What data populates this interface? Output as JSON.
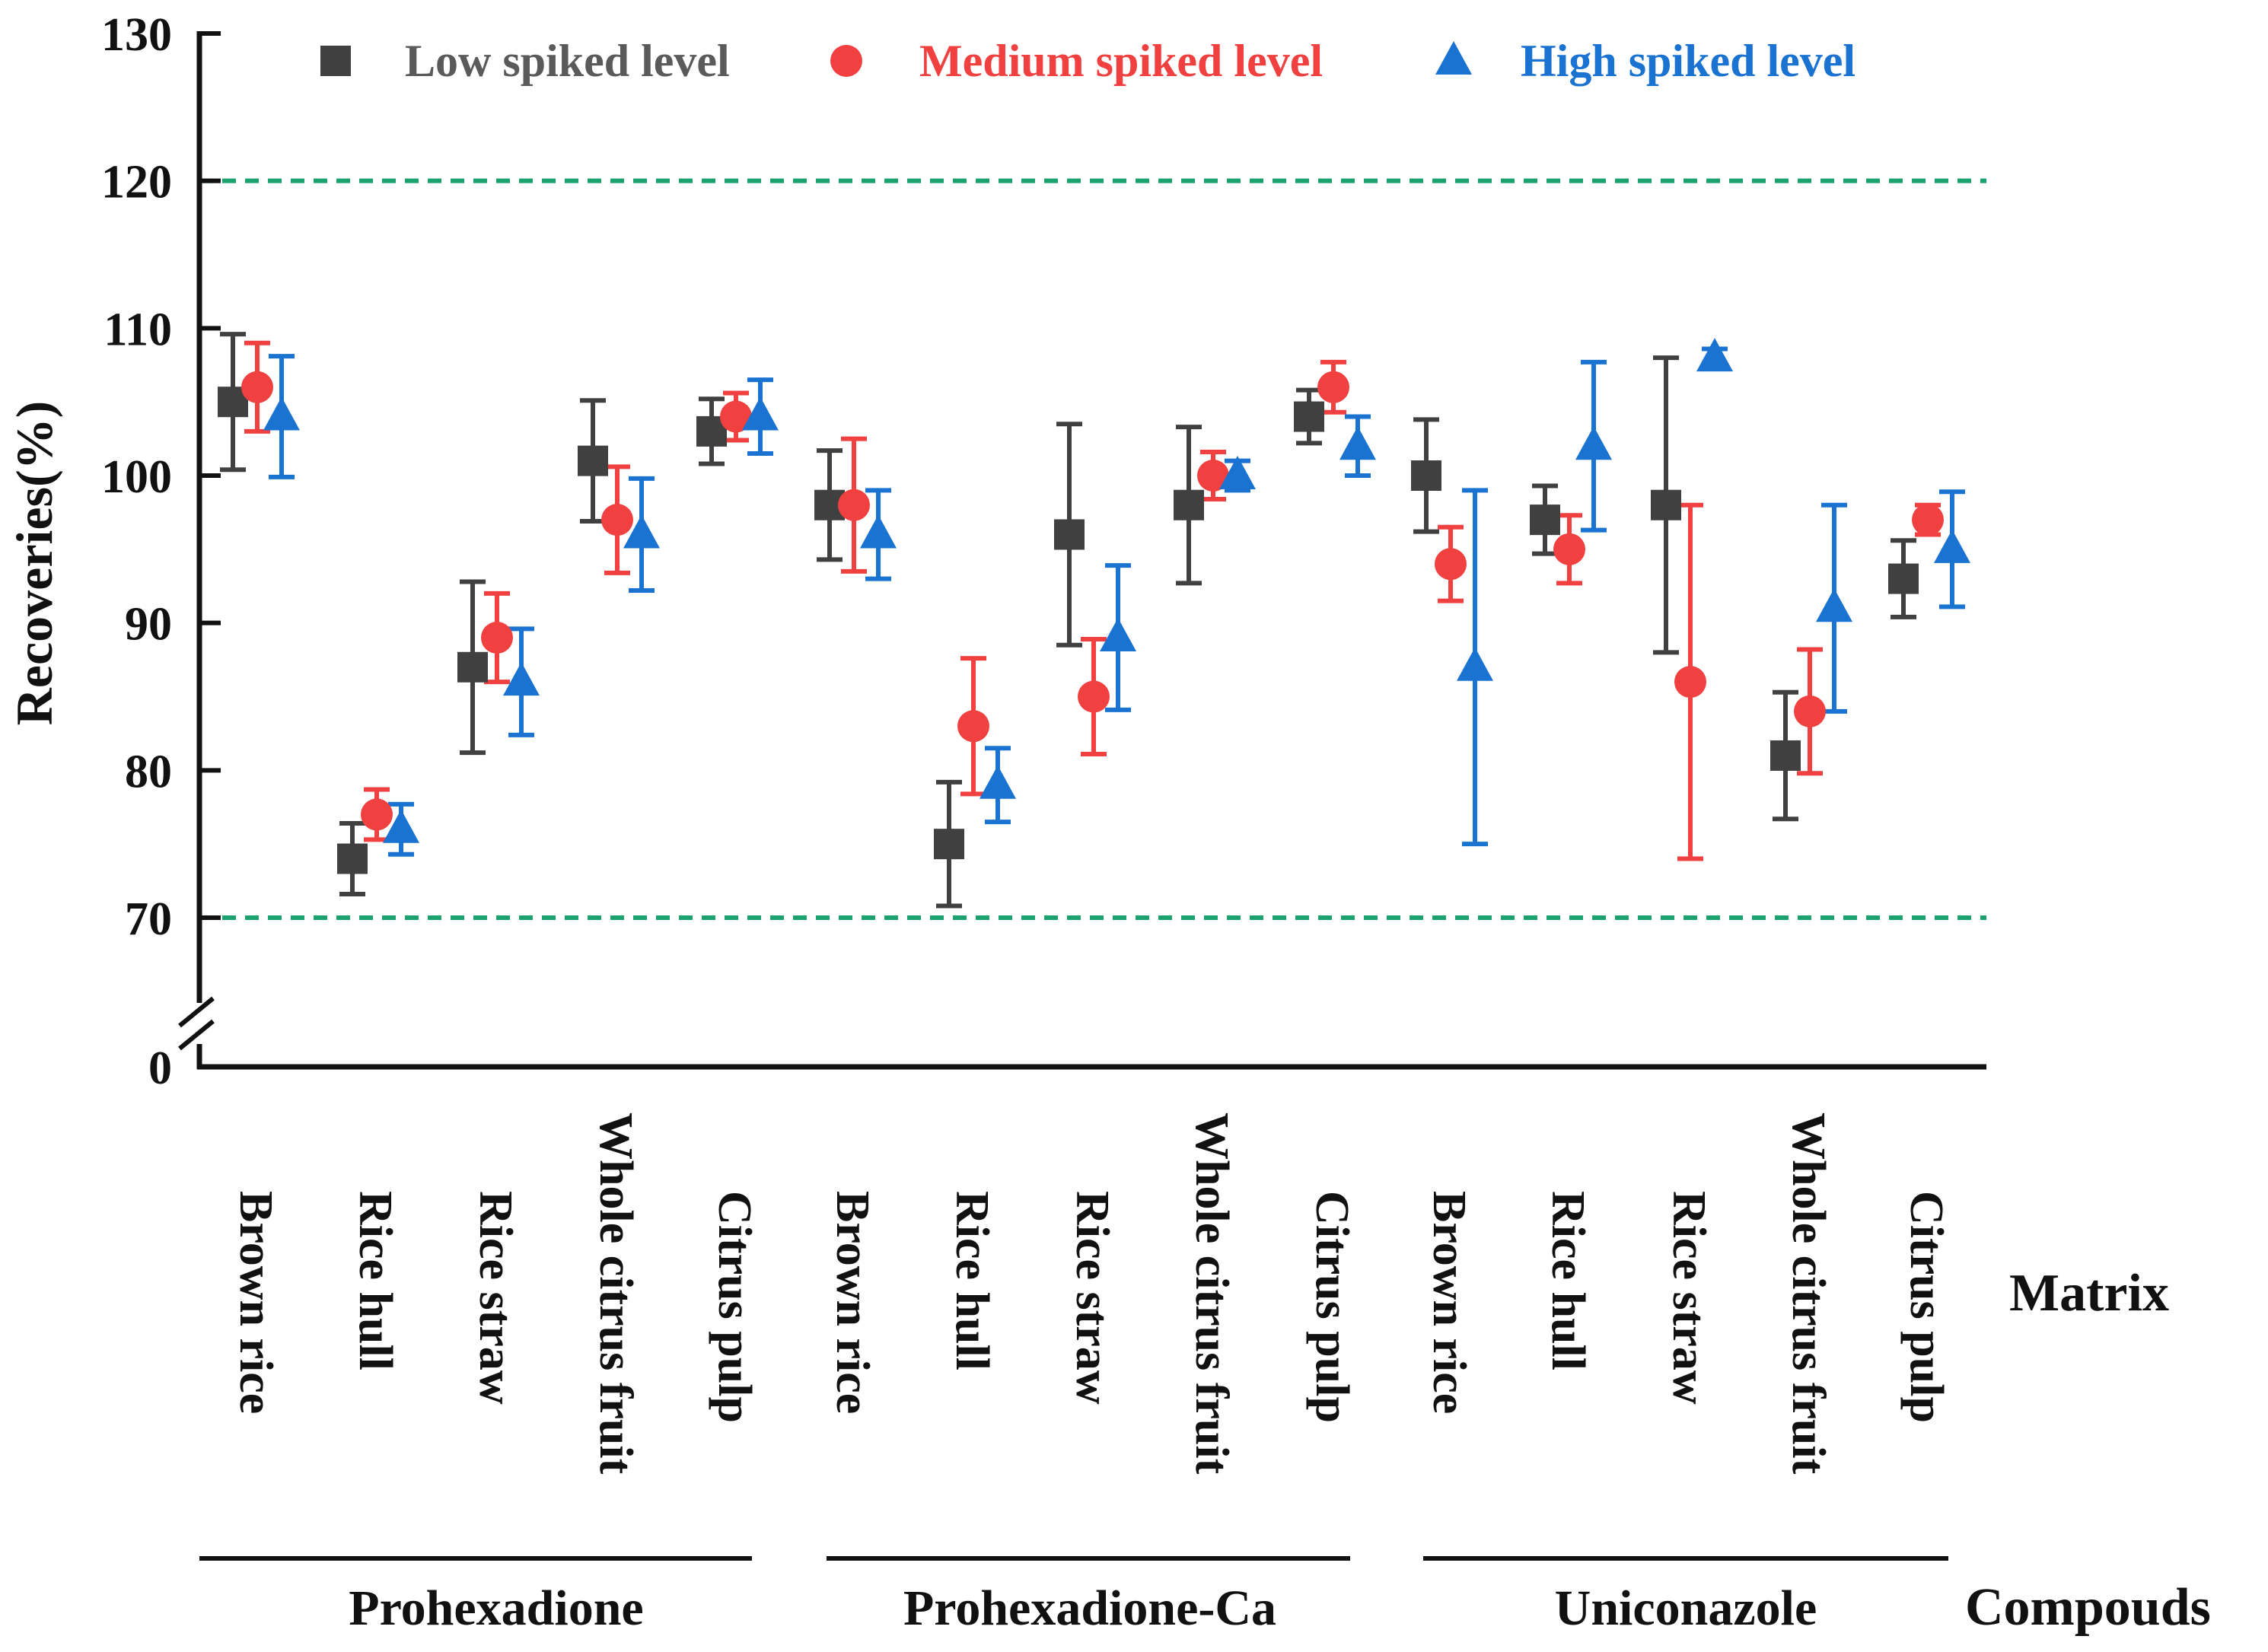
{
  "chart_data": {
    "type": "scatter",
    "ylabel": "Recoveries(%)",
    "y_ticks": [
      0,
      70,
      80,
      90,
      100,
      110,
      120,
      130
    ],
    "ylim_display": [
      70,
      130
    ],
    "axis_break": "between 0 and 70",
    "reference_lines": [
      {
        "y": 120,
        "style": "dashed",
        "color": "#1aa36e"
      },
      {
        "y": 70,
        "style": "dashed",
        "color": "#1aa36e"
      }
    ],
    "matrix_axis_label": "Matrix",
    "compound_axis_label": "Compouds",
    "compounds": [
      {
        "name": "Prohexadione",
        "matrices": [
          "Brown rice",
          "Rice hull",
          "Rice straw",
          "Whole citrus fruit",
          "Citrus pulp"
        ]
      },
      {
        "name": "Prohexadione-Ca",
        "matrices": [
          "Brown rice",
          "Rice hull",
          "Rice straw",
          "Whole citrus fruit",
          "Citrus pulp"
        ]
      },
      {
        "name": "Uniconazole",
        "matrices": [
          "Brown rice",
          "Rice hull",
          "Rice straw",
          "Whole citrus fruit",
          "Citrus pulp"
        ]
      }
    ],
    "series": [
      {
        "name": "Low spiked level",
        "marker": "square",
        "color": "#404040",
        "text_color": "#5a5a5a",
        "values": [
          105,
          74,
          87,
          101,
          103,
          98,
          75,
          96,
          98,
          104,
          100,
          97,
          98,
          81,
          93
        ],
        "errors": [
          4.6,
          2.4,
          5.8,
          4.1,
          2.2,
          3.7,
          4.2,
          7.5,
          5.3,
          1.8,
          3.8,
          2.3,
          10.0,
          4.3,
          2.6
        ]
      },
      {
        "name": "Medium spiked level",
        "marker": "circle",
        "color": "#f04040",
        "text_color": "#f04040",
        "values": [
          106,
          77,
          89,
          97,
          104,
          98,
          83,
          85,
          100,
          106,
          94,
          95,
          86,
          84,
          97
        ],
        "errors": [
          3.0,
          1.7,
          3.0,
          3.6,
          1.6,
          4.5,
          4.6,
          3.9,
          1.6,
          1.7,
          2.5,
          2.3,
          12.0,
          4.2,
          1.0
        ]
      },
      {
        "name": "High spiked level",
        "marker": "triangle",
        "color": "#1a73d1",
        "text_color": "#1a73d1",
        "values": [
          104,
          76,
          86,
          96,
          104,
          96,
          79,
          89,
          100,
          102,
          87,
          102,
          108,
          91,
          95
        ],
        "errors": [
          4.1,
          1.7,
          3.6,
          3.8,
          2.5,
          3.0,
          2.5,
          4.9,
          1.0,
          2.0,
          12.0,
          5.7,
          0.6,
          7.0,
          3.9
        ]
      }
    ]
  }
}
